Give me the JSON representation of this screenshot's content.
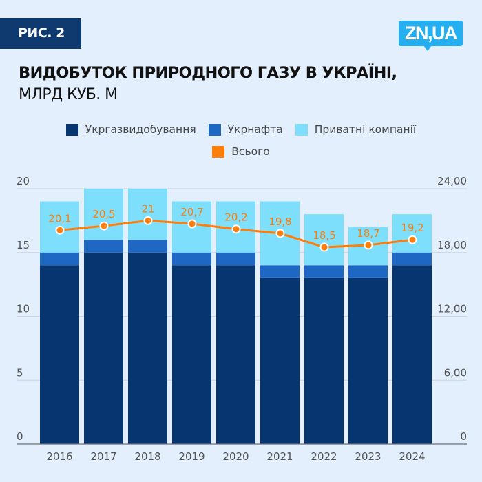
{
  "header": {
    "badge": "РИС. 2",
    "logo": "ZN,UA",
    "title": "ВИДОБУТОК ПРИРОДНОГО ГАЗУ В УКРАЇНІ,",
    "subtitle": "МЛРД КУБ. М"
  },
  "colors": {
    "background": "#e3effd",
    "ukrgaz": "#07356f",
    "ukrnafta": "#1e67c2",
    "private": "#7ddffb",
    "total": "#ff7d0a"
  },
  "chart_data": {
    "type": "bar",
    "stacked": true,
    "title": "ВИДОБУТОК ПРИРОДНОГО ГАЗУ В УКРАЇНІ,",
    "subtitle": "МЛРД КУБ. М",
    "categories": [
      "2016",
      "2017",
      "2018",
      "2019",
      "2020",
      "2021",
      "2022",
      "2023",
      "2024"
    ],
    "series": [
      {
        "name": "Укргазвидобування",
        "type": "bar",
        "axis": "left",
        "color": "#07356f",
        "values": [
          14,
          15,
          15,
          14,
          14,
          13,
          13,
          13,
          14
        ]
      },
      {
        "name": "Укрнафта",
        "type": "bar",
        "axis": "left",
        "color": "#1e67c2",
        "values": [
          1,
          1,
          1,
          1,
          1,
          1,
          1,
          1,
          1
        ]
      },
      {
        "name": "Приватні компанії",
        "type": "bar",
        "axis": "left",
        "color": "#7ddffb",
        "values": [
          4,
          4,
          4,
          4,
          4,
          5,
          4,
          3,
          3
        ]
      },
      {
        "name": "Всього",
        "type": "line",
        "axis": "right",
        "color": "#ff7d0a",
        "values": [
          20.1,
          20.5,
          21,
          20.7,
          20.2,
          19.8,
          18.5,
          18.7,
          19.2
        ],
        "labels": [
          "20,1",
          "20,5",
          "21",
          "20,7",
          "20,2",
          "19,8",
          "18,5",
          "18,7",
          "19,2"
        ]
      }
    ],
    "y_left": {
      "ylim": [
        0,
        20
      ],
      "ticks": [
        0,
        5,
        10,
        15,
        20
      ],
      "tick_labels": [
        "0",
        "5",
        "10",
        "15",
        "20"
      ]
    },
    "y_right": {
      "ylim": [
        0,
        24
      ],
      "ticks": [
        0,
        6,
        12,
        18,
        24
      ],
      "tick_labels": [
        "0",
        "6,00",
        "12,00",
        "18,00",
        "24,00"
      ]
    },
    "xlabel": "",
    "ylabel": "",
    "grid": true,
    "legend": "top-center"
  }
}
